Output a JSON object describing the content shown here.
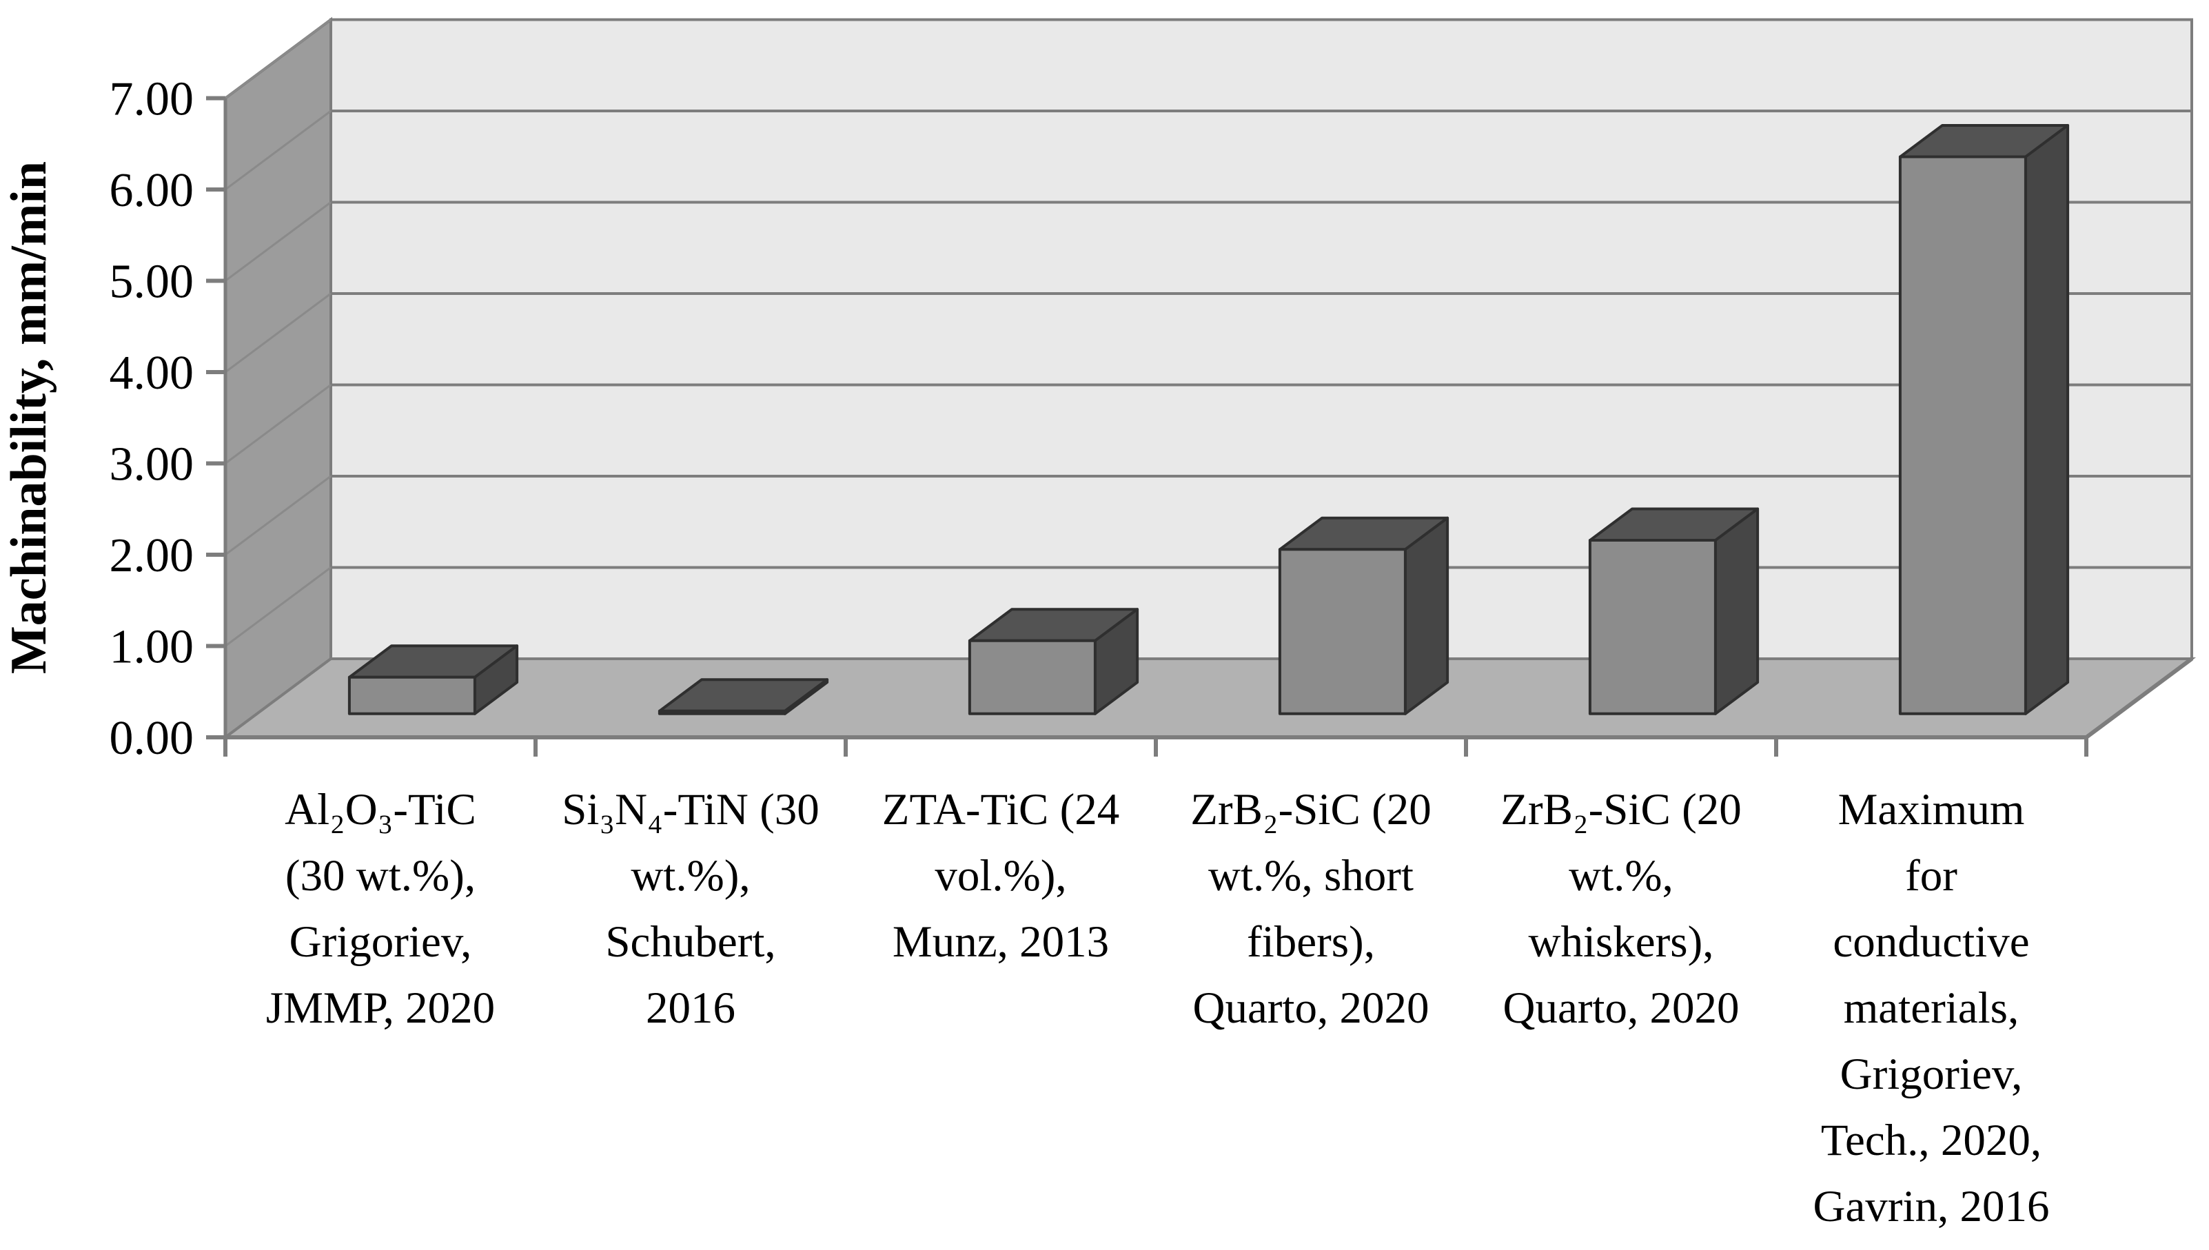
{
  "chart_data": {
    "type": "bar",
    "projection": "3d-oblique",
    "title": "",
    "xlabel": "",
    "ylabel": "Machinability, mm/min",
    "ylim": [
      0,
      7
    ],
    "ytick_interval": 1.0,
    "ytick_labels": [
      "0.00",
      "1.00",
      "2.00",
      "3.00",
      "4.00",
      "5.00",
      "6.00",
      "7.00"
    ],
    "grid": "horizontal",
    "legend": "none",
    "categories": [
      "Al₂O₃-TiC (30 wt.%), Grigoriev, JMMP, 2020",
      "Si₃N₄-TiN (30 wt.%), Schubert, 2016",
      "ZTA-TiC (24 vol.%), Munz, 2013",
      "ZrB₂-SiC (20 wt.%, short fibers), Quarto, 2020",
      "ZrB₂-SiC (20 wt.%, whiskers), Quarto, 2020",
      "Maximum for conductive materials, Grigoriev, Tech., 2020, Gavrin, 2016"
    ],
    "category_label_lines": [
      [
        "Al₂O₃-TiC",
        "(30 wt.%),",
        "Grigoriev,",
        "JMMP, 2020"
      ],
      [
        "Si₃N₄-TiN (30",
        "wt.%),",
        "Schubert,",
        "2016"
      ],
      [
        "ZTA-TiC (24",
        "vol.%),",
        "Munz, 2013"
      ],
      [
        "ZrB₂-SiC (20",
        "wt.%, short",
        "fibers),",
        "Quarto, 2020"
      ],
      [
        "ZrB₂-SiC (20",
        "wt.%,",
        "whiskers),",
        "Quarto, 2020"
      ],
      [
        "Maximum",
        "for",
        "conductive",
        "materials,",
        "Grigoriev,",
        "Tech., 2020,",
        "Gavrin, 2016"
      ]
    ],
    "values": [
      0.4,
      0.03,
      0.8,
      1.8,
      1.9,
      6.1
    ]
  },
  "colors": {
    "background": "#ffffff",
    "back_wall": "#e9e9e9",
    "side_wall": "#9c9c9c",
    "floor": "#b2b2b2",
    "gridline": "#7d7d7d",
    "axis": "#7d7d7d",
    "bar_front": "#8c8c8c",
    "bar_top": "#535353",
    "bar_side": "#464646",
    "bar_outline": "#2f2f2f",
    "text": "#000000"
  }
}
